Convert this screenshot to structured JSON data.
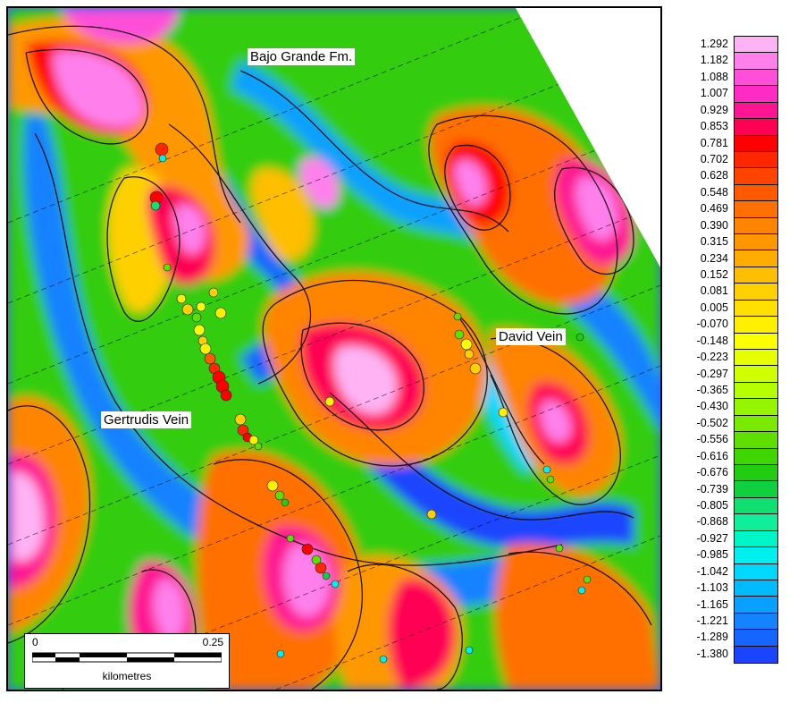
{
  "map": {
    "labels": {
      "formation": "Bajo Grande Fm.",
      "vein_east": "David Vein",
      "vein_west": "Gertrudis Vein"
    },
    "scale_bar": {
      "start_label": "0",
      "end_label": "0.25",
      "unit": "kilometres"
    }
  },
  "legend": {
    "values": [
      "1.292",
      "1.182",
      "1.088",
      "1.007",
      "0.929",
      "0.853",
      "0.781",
      "0.702",
      "0.628",
      "0.548",
      "0.469",
      "0.390",
      "0.315",
      "0.234",
      "0.152",
      "0.081",
      "0.005",
      "-0.070",
      "-0.148",
      "-0.223",
      "-0.297",
      "-0.365",
      "-0.430",
      "-0.502",
      "-0.556",
      "-0.616",
      "-0.676",
      "-0.739",
      "-0.805",
      "-0.868",
      "-0.927",
      "-0.985",
      "-1.042",
      "-1.103",
      "-1.165",
      "-1.221",
      "-1.289",
      "-1.380"
    ],
    "colors": [
      "#ffb3f5",
      "#ff80ec",
      "#ff4fd8",
      "#ff2bc4",
      "#ff1493",
      "#ff0055",
      "#ff0000",
      "#ff2600",
      "#ff4400",
      "#ff5a00",
      "#ff7000",
      "#ff8400",
      "#ff9800",
      "#ffac00",
      "#ffbe00",
      "#ffd000",
      "#ffe000",
      "#fff000",
      "#fcff00",
      "#e6ff00",
      "#d0ff00",
      "#b5ff00",
      "#96f500",
      "#7aeb00",
      "#5de000",
      "#3fd600",
      "#22cc10",
      "#10d040",
      "#10e070",
      "#10ee9c",
      "#00f5c8",
      "#00f0f0",
      "#00d8ff",
      "#00bcff",
      "#0aa0ff",
      "#1582ff",
      "#1566ff",
      "#1a44ff"
    ]
  }
}
